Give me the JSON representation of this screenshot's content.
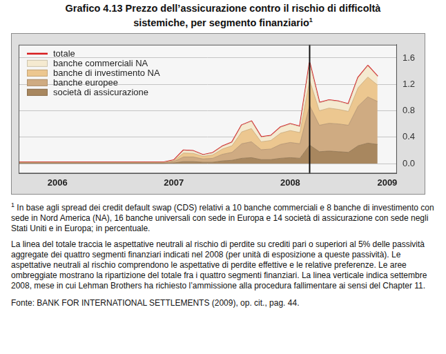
{
  "title": "Grafico 4.13  Prezzo dell’assicurazione contro il rischio di difficoltà sistemiche, per segmento finanziario",
  "title_footnote_mark": "1",
  "footnote_mark": "1",
  "footnote": "In base agli spread dei credit default swap (CDS) relativi a 10 banche commerciali e 8 banche di investimento con sede in Nord America (NA), 16 banche universali con sede in Europa e 14 società di assicurazione con sede negli Stati Uniti e in Europa; in percentuale.",
  "notes": "La linea del totale traccia le aspettative neutrali al rischio di perdite su crediti pari o superiori al 5% delle passività aggregate dei quattro segmenti finanziari indicati nel 2008 (per unità di esposizione a queste passività). Le aspettative neutrali al rischio comprendono le aspettative di perdite effettive e le relative preferenze. Le aree ombreggiate mostrano la ripartizione del totale fra i quattro segmenti finanziari. La linea verticale indica settembre 2008, mese in cui Lehman Brothers ha richiesto l’ammissione alla procedura fallimentare ai sensi del Chapter 11.",
  "source": "Fonte: BANK FOR INTERNATIONAL SETTLEMENTS (2009), op. cit., pag. 44.",
  "chart_data": {
    "type": "line",
    "stacked": true,
    "grid": true,
    "legend": "top-left",
    "categories": [
      null,
      null,
      null,
      null,
      "2006",
      null,
      null,
      null,
      null,
      null,
      null,
      null,
      null,
      null,
      null,
      null,
      "2007",
      null,
      null,
      null,
      null,
      null,
      null,
      null,
      null,
      null,
      null,
      null,
      "2008",
      null,
      null,
      null,
      null,
      null,
      null,
      null,
      null,
      null,
      "2009",
      null
    ],
    "vertical_line": 30,
    "ylim": [
      -0.15,
      1.8
    ],
    "yticks": [
      {
        "value": 0,
        "label": "0.0"
      },
      0.4,
      0.8,
      1.2,
      1.6
    ],
    "series": [
      {
        "name": "totale",
        "type": "line",
        "color": "#d7191c",
        "values": [
          0.02,
          0.02,
          0.02,
          0.02,
          0.02,
          0.02,
          0.02,
          0.02,
          0.02,
          0.02,
          0.02,
          0.02,
          0.02,
          0.02,
          0.02,
          0.02,
          0.05,
          0.2,
          0.19,
          0.13,
          0.16,
          0.26,
          0.32,
          0.58,
          0.64,
          0.4,
          0.42,
          0.55,
          0.6,
          0.56,
          1.52,
          0.92,
          0.96,
          0.94,
          0.9,
          1.3,
          1.48,
          1.32,
          null,
          null
        ]
      },
      {
        "name": "banche commerciali NA",
        "type": "area",
        "color": "#f5ead0",
        "values": [
          0.003,
          0.003,
          0.003,
          0.003,
          0.003,
          0.003,
          0.003,
          0.003,
          0.003,
          0.003,
          0.003,
          0.003,
          0.003,
          0.003,
          0.003,
          0.003,
          0.007,
          0.04,
          0.035,
          0.02,
          0.03,
          0.04,
          0.05,
          0.1,
          0.11,
          0.07,
          0.07,
          0.09,
          0.1,
          0.09,
          0.26,
          0.12,
          0.12,
          0.12,
          0.11,
          0.15,
          0.17,
          0.13,
          null,
          null
        ]
      },
      {
        "name": "banche di investimento NA",
        "type": "area",
        "color": "#ecc790",
        "values": [
          0.005,
          0.005,
          0.005,
          0.005,
          0.005,
          0.005,
          0.005,
          0.005,
          0.005,
          0.005,
          0.005,
          0.005,
          0.005,
          0.005,
          0.005,
          0.005,
          0.013,
          0.06,
          0.055,
          0.04,
          0.05,
          0.08,
          0.1,
          0.18,
          0.2,
          0.12,
          0.13,
          0.17,
          0.18,
          0.17,
          0.38,
          0.22,
          0.23,
          0.22,
          0.21,
          0.28,
          0.3,
          0.25,
          null,
          null
        ]
      },
      {
        "name": "banche europee",
        "type": "area",
        "color": "#cfab82",
        "values": [
          0.008,
          0.008,
          0.008,
          0.008,
          0.008,
          0.008,
          0.008,
          0.008,
          0.008,
          0.008,
          0.008,
          0.008,
          0.008,
          0.008,
          0.008,
          0.008,
          0.02,
          0.07,
          0.07,
          0.05,
          0.06,
          0.1,
          0.12,
          0.22,
          0.24,
          0.15,
          0.16,
          0.21,
          0.23,
          0.22,
          0.6,
          0.4,
          0.42,
          0.42,
          0.41,
          0.6,
          0.7,
          0.65,
          null,
          null
        ]
      },
      {
        "name": "società di assicurazione",
        "type": "area",
        "color": "#a8875f",
        "values": [
          0.004,
          0.004,
          0.004,
          0.004,
          0.004,
          0.004,
          0.004,
          0.004,
          0.004,
          0.004,
          0.004,
          0.004,
          0.004,
          0.004,
          0.004,
          0.004,
          0.01,
          0.03,
          0.03,
          0.02,
          0.02,
          0.04,
          0.05,
          0.08,
          0.09,
          0.06,
          0.06,
          0.08,
          0.09,
          0.08,
          0.28,
          0.18,
          0.19,
          0.18,
          0.17,
          0.27,
          0.31,
          0.29,
          null,
          null
        ]
      }
    ]
  }
}
